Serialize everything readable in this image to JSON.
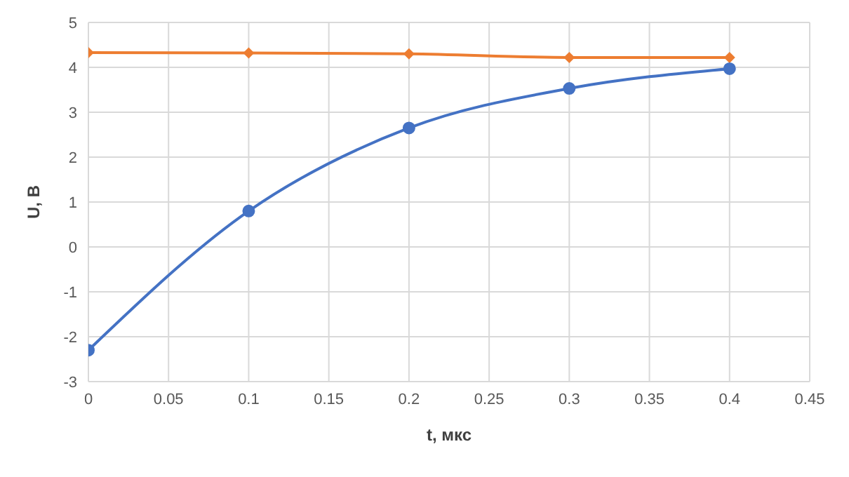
{
  "chart_data": {
    "type": "line",
    "xlabel": "t, мкс",
    "ylabel": "U, В",
    "x": [
      0,
      0.1,
      0.2,
      0.3,
      0.4
    ],
    "series": [
      {
        "color": "#ed7d31",
        "values": [
          4.33,
          4.32,
          4.3,
          4.22,
          4.22
        ],
        "marker": "diamond"
      },
      {
        "color": "#4472c4",
        "values": [
          -2.3,
          0.8,
          2.65,
          3.53,
          3.97
        ],
        "marker": "circle"
      }
    ],
    "xlim": [
      0,
      0.45
    ],
    "xticks": [
      0,
      0.05,
      0.1,
      0.15,
      0.2,
      0.25,
      0.3,
      0.35,
      0.4,
      0.45
    ],
    "ylim": [
      -3,
      5
    ],
    "yticks": [
      -3,
      -2,
      -1,
      0,
      1,
      2,
      3,
      4,
      5
    ],
    "grid": true,
    "legend": false,
    "line_style": "solid"
  }
}
